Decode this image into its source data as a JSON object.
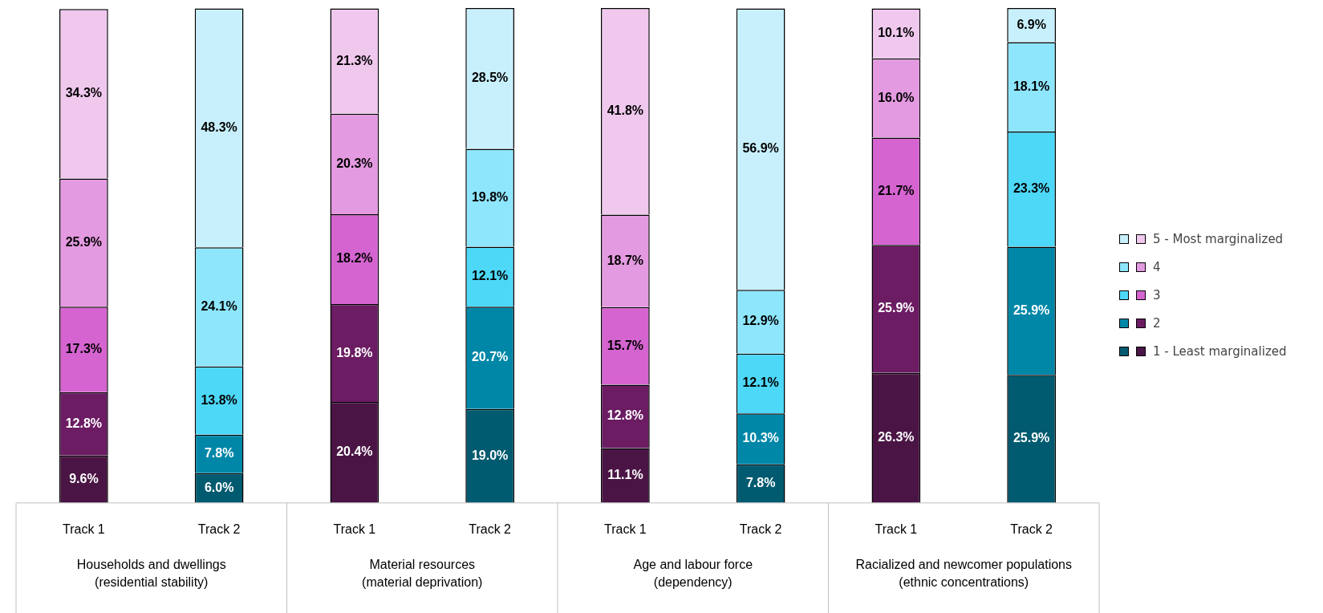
{
  "chart_data": {
    "type": "bar",
    "stacked": true,
    "legend": "right",
    "categories": [
      "Track 1",
      "Track 2",
      "Track 1",
      "Track 2",
      "Track 1",
      "Track 2",
      "Track 1",
      "Track 2"
    ],
    "annotations": [
      "Households and dwellings (residential stability)",
      "Material resources (material deprivation)",
      "Age and labour force (dependency)",
      "Racialized and newcomer populations (ethnic concentrations)"
    ],
    "series": [
      {
        "name": "1 - Least marginalized",
        "colors": [
          "#4a1545",
          "#005a70",
          "#4a1545",
          "#005a70",
          "#4a1545",
          "#005a70",
          "#4a1545",
          "#005a70"
        ],
        "values": [
          9.6,
          6.0,
          20.4,
          19.0,
          11.1,
          7.8,
          26.3,
          25.9
        ],
        "value_labels": [
          "9.6%",
          "6.0%",
          "20.4%",
          "19.0%",
          "11.1%",
          "7.8%",
          "26.3%",
          "25.9%"
        ]
      },
      {
        "name": "2",
        "colors": [
          "#6b1c63",
          "#0087a8",
          "#6b1c63",
          "#0087a8",
          "#6b1c63",
          "#0087a8",
          "#6b1c63",
          "#0087a8"
        ],
        "values": [
          12.8,
          7.8,
          19.8,
          20.7,
          12.8,
          10.3,
          25.9,
          25.9
        ],
        "value_labels": [
          "12.8%",
          "7.8%",
          "19.8%",
          "20.7%",
          "12.8%",
          "10.3%",
          "25.9%",
          "25.9%"
        ]
      },
      {
        "name": "3",
        "colors": [
          "#d564d1",
          "#4dd8f8",
          "#d564d1",
          "#4dd8f8",
          "#d564d1",
          "#4dd8f8",
          "#d564d1",
          "#4dd8f8"
        ],
        "values": [
          17.3,
          13.8,
          18.2,
          12.1,
          15.7,
          12.1,
          21.7,
          23.3
        ],
        "value_labels": [
          "17.3%",
          "13.8%",
          "18.2%",
          "12.1%",
          "15.7%",
          "12.1%",
          "21.7%",
          "23.3%"
        ]
      },
      {
        "name": "4",
        "colors": [
          "#e49ae0",
          "#8ee6fc",
          "#e49ae0",
          "#8ee6fc",
          "#e49ae0",
          "#8ee6fc",
          "#e49ae0",
          "#8ee6fc"
        ],
        "values": [
          25.9,
          24.1,
          20.3,
          19.8,
          18.7,
          12.9,
          16.0,
          18.1
        ],
        "value_labels": [
          "25.9%",
          "24.1%",
          "20.3%",
          "19.8%",
          "18.7%",
          "12.9%",
          "16.0%",
          "18.1%"
        ]
      },
      {
        "name": "5 - Most marginalized",
        "colors": [
          "#f0c8ee",
          "#c8f0fc",
          "#f0c8ee",
          "#c8f0fc",
          "#f0c8ee",
          "#c8f0fc",
          "#f0c8ee",
          "#c8f0fc"
        ],
        "values": [
          34.3,
          48.3,
          21.3,
          28.5,
          41.8,
          56.9,
          10.1,
          6.9
        ],
        "value_labels": [
          "34.3%",
          "48.3%",
          "21.3%",
          "28.5%",
          "41.8%",
          "56.9%",
          "10.1%",
          "6.9%"
        ]
      }
    ]
  }
}
